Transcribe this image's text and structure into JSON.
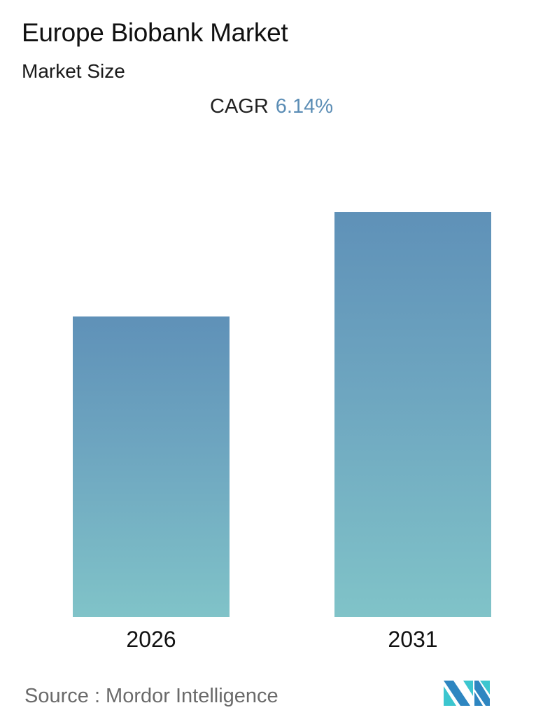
{
  "header": {
    "title": "Europe Biobank Market",
    "subtitle": "Market Size",
    "cagr_label": "CAGR",
    "cagr_value": "6.14%"
  },
  "footer": {
    "source": "Source :  Mordor Intelligence",
    "logo": "mordor-intelligence-logo"
  },
  "colors": {
    "bar_top": "#5f91b8",
    "bar_bottom": "#80c3c8",
    "cagr_value": "#5b8db5"
  },
  "chart_data": {
    "type": "bar",
    "title": "Europe Biobank Market",
    "subtitle": "Market Size",
    "categories": [
      "2026",
      "2031"
    ],
    "values": [
      100,
      134.7
    ],
    "value_note": "relative heights; no value labels or y-axis shown",
    "xlabel": "",
    "ylabel": "",
    "grid": false,
    "legend": "none",
    "annotations": [
      "CAGR 6.14%"
    ]
  }
}
